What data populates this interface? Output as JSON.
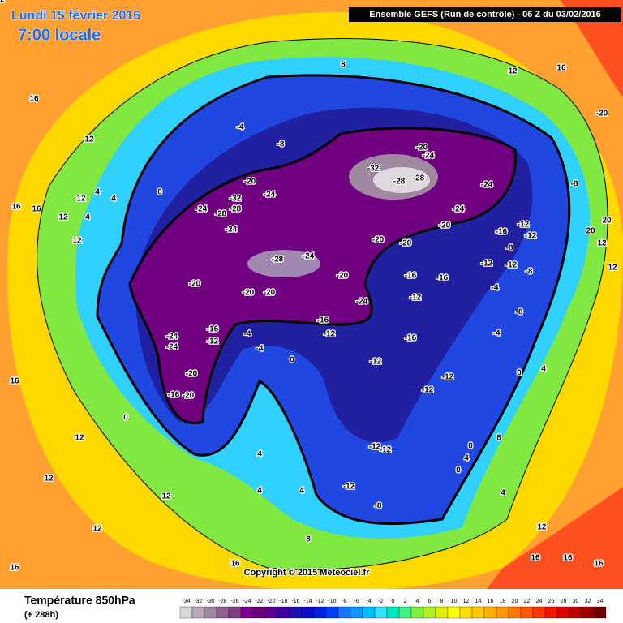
{
  "header": {
    "date": "Lundi 15 février 2016",
    "time": "7:00 locale",
    "model": "Ensemble GEFS  (Run de contrôle)  -  06 Z du 03/02/2016"
  },
  "copyright": "Copyright © 2015 Meteociel.fr",
  "footer": {
    "parameter": "Température 850hPa",
    "lead": "(+ 288h)"
  },
  "legend": {
    "values": [
      -34,
      -32,
      -30,
      -28,
      -26,
      -24,
      -22,
      -20,
      -18,
      -16,
      -14,
      -12,
      -10,
      -8,
      -6,
      -4,
      -2,
      0,
      2,
      4,
      6,
      8,
      10,
      12,
      14,
      16,
      18,
      20,
      22,
      24,
      26,
      28,
      30,
      32,
      34
    ],
    "colors": [
      "#d8d8d8",
      "#b8a8b8",
      "#a088a0",
      "#906090",
      "#804080",
      "#800090",
      "#6a007a",
      "#5a0090",
      "#4000a0",
      "#2010b0",
      "#1010c8",
      "#0020e0",
      "#0040f0",
      "#1870ff",
      "#1098ff",
      "#00c0ff",
      "#30e0ff",
      "#00e8c0",
      "#40f080",
      "#80f040",
      "#b0f020",
      "#e0f000",
      "#ffff00",
      "#ffe000",
      "#ffc800",
      "#ffb000",
      "#ff9800",
      "#ff7800",
      "#ff5800",
      "#ff3800",
      "#f01800",
      "#d80000",
      "#b80000",
      "#980000",
      "#700000"
    ]
  },
  "map_labels": [
    16,
    12,
    16,
    16,
    12,
    12,
    4,
    4,
    4,
    12,
    0,
    -4,
    -8,
    -20,
    -24,
    -32,
    -28,
    -24,
    -28,
    -24,
    -32,
    -28,
    -28,
    -20,
    -24,
    -24,
    -24,
    -20,
    -20,
    -20,
    -24,
    -28,
    -20,
    -20,
    -20,
    -20,
    -24,
    -16,
    -16,
    -12,
    -16,
    -12,
    -16,
    -12,
    -24,
    -24,
    -20,
    -16,
    -20,
    -12,
    -16,
    -12,
    -12,
    -12,
    -12,
    -12,
    -8,
    -12,
    -16,
    -12,
    -12,
    -8,
    -12,
    -8,
    -4,
    -8,
    -4,
    -8,
    -20,
    16,
    12,
    8,
    0,
    -4,
    -4,
    0,
    4,
    4,
    4,
    8,
    0,
    12,
    12,
    12,
    12,
    16,
    16,
    0,
    4,
    4,
    8,
    0,
    4,
    12,
    16,
    16,
    16,
    20,
    20,
    12,
    16,
    12,
    12
  ]
}
